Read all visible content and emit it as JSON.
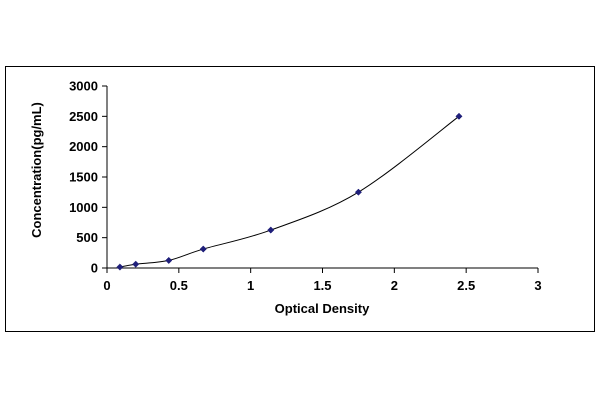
{
  "chart_data": {
    "type": "scatter",
    "title": "",
    "xlabel": "Optical Density",
    "ylabel": "Concentration(pg/mL)",
    "xlim": [
      0,
      3
    ],
    "ylim": [
      0,
      3000
    ],
    "x_ticks": [
      0,
      0.5,
      1,
      1.5,
      2,
      2.5,
      3
    ],
    "x_tick_labels": [
      "0",
      "0.5",
      "1",
      "1.5",
      "2",
      "2.5",
      "3"
    ],
    "y_ticks": [
      0,
      500,
      1000,
      1500,
      2000,
      2500,
      3000
    ],
    "y_tick_labels": [
      "0",
      "500",
      "1000",
      "1500",
      "2000",
      "2500",
      "3000"
    ],
    "grid": false,
    "legend": false,
    "trendline": "smooth",
    "series": [
      {
        "x": [
          0.09,
          0.2,
          0.43,
          0.67,
          1.14,
          1.75,
          2.45
        ],
        "y": [
          15.6,
          62.5,
          125,
          312,
          625,
          1250,
          2500
        ],
        "marker": "diamond",
        "color": "#1f1f7a"
      }
    ]
  }
}
